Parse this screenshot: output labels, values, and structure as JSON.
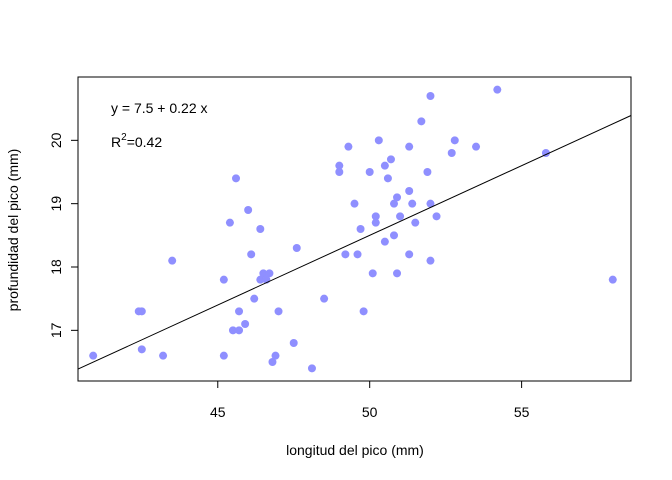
{
  "chart_data": {
    "type": "scatter",
    "xlabel": "longitud del pico (mm)",
    "ylabel": "profundidad del pico (mm)",
    "xlim": [
      40.4,
      58.6
    ],
    "ylim": [
      16.2,
      21.0
    ],
    "xticks": [
      45,
      50,
      55
    ],
    "yticks": [
      17,
      18,
      19,
      20
    ],
    "grid": false,
    "point_color": "#8F8FFF",
    "line_color": "#000000",
    "annotations": {
      "equation": "y = 7.5 + 0.22 x",
      "r2_label": "R",
      "r2_exp": "2",
      "r2_value": "=0.42"
    },
    "fit": {
      "intercept": 7.5,
      "slope": 0.22
    },
    "points": [
      [
        40.9,
        16.6
      ],
      [
        42.5,
        16.7
      ],
      [
        43.2,
        16.6
      ],
      [
        42.4,
        17.3
      ],
      [
        42.5,
        17.3
      ],
      [
        43.5,
        18.1
      ],
      [
        45.2,
        16.6
      ],
      [
        45.2,
        17.8
      ],
      [
        45.4,
        18.7
      ],
      [
        45.5,
        17.0
      ],
      [
        45.6,
        19.4
      ],
      [
        45.7,
        17.0
      ],
      [
        45.7,
        17.3
      ],
      [
        45.9,
        17.1
      ],
      [
        46.0,
        18.9
      ],
      [
        46.1,
        18.2
      ],
      [
        46.2,
        17.5
      ],
      [
        46.4,
        18.6
      ],
      [
        46.4,
        17.8
      ],
      [
        46.5,
        17.9
      ],
      [
        46.6,
        17.8
      ],
      [
        46.7,
        17.9
      ],
      [
        46.8,
        16.5
      ],
      [
        46.9,
        16.6
      ],
      [
        47.0,
        17.3
      ],
      [
        47.5,
        16.8
      ],
      [
        47.6,
        18.3
      ],
      [
        48.1,
        16.4
      ],
      [
        48.5,
        17.5
      ],
      [
        49.0,
        19.6
      ],
      [
        49.0,
        19.5
      ],
      [
        49.2,
        18.2
      ],
      [
        49.3,
        19.9
      ],
      [
        49.5,
        19.0
      ],
      [
        49.6,
        18.2
      ],
      [
        49.7,
        18.6
      ],
      [
        49.8,
        17.3
      ],
      [
        50.0,
        19.5
      ],
      [
        50.1,
        17.9
      ],
      [
        50.2,
        18.8
      ],
      [
        50.2,
        18.7
      ],
      [
        50.3,
        20.0
      ],
      [
        50.5,
        18.4
      ],
      [
        50.5,
        19.6
      ],
      [
        50.6,
        19.4
      ],
      [
        50.7,
        19.7
      ],
      [
        50.8,
        19.0
      ],
      [
        50.8,
        18.5
      ],
      [
        50.9,
        19.1
      ],
      [
        50.9,
        17.9
      ],
      [
        51.0,
        18.8
      ],
      [
        51.3,
        19.9
      ],
      [
        51.3,
        18.2
      ],
      [
        51.3,
        19.2
      ],
      [
        51.4,
        19.0
      ],
      [
        51.5,
        18.7
      ],
      [
        51.7,
        20.3
      ],
      [
        51.9,
        19.5
      ],
      [
        52.0,
        20.7
      ],
      [
        52.0,
        18.1
      ],
      [
        52.0,
        19.0
      ],
      [
        52.2,
        18.8
      ],
      [
        52.7,
        19.8
      ],
      [
        52.8,
        20.0
      ],
      [
        53.5,
        19.9
      ],
      [
        54.2,
        20.8
      ],
      [
        55.8,
        19.8
      ],
      [
        58.0,
        17.8
      ]
    ]
  }
}
